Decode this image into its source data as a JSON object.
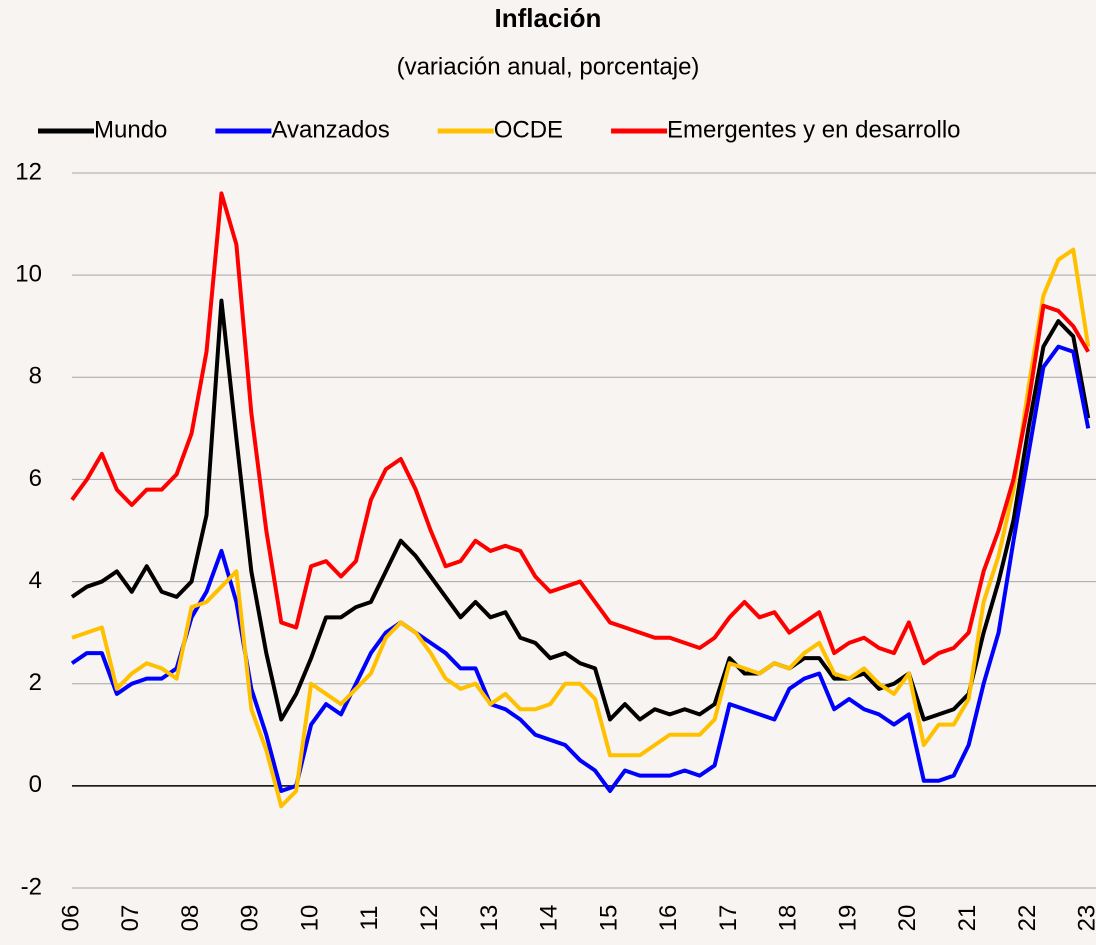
{
  "chart_data": {
    "type": "line",
    "title": "Inflación",
    "subtitle": "(variación anual, porcentaje)",
    "x": [
      2006,
      2006.25,
      2006.5,
      2006.75,
      2007,
      2007.25,
      2007.5,
      2007.75,
      2008,
      2008.25,
      2008.5,
      2008.75,
      2009,
      2009.25,
      2009.5,
      2009.75,
      2010,
      2010.25,
      2010.5,
      2010.75,
      2011,
      2011.25,
      2011.5,
      2011.75,
      2012,
      2012.25,
      2012.5,
      2012.75,
      2013,
      2013.25,
      2013.5,
      2013.75,
      2014,
      2014.25,
      2014.5,
      2014.75,
      2015,
      2015.25,
      2015.5,
      2015.75,
      2016,
      2016.25,
      2016.5,
      2016.75,
      2017,
      2017.25,
      2017.5,
      2017.75,
      2018,
      2018.25,
      2018.5,
      2018.75,
      2019,
      2019.25,
      2019.5,
      2019.75,
      2020,
      2020.25,
      2020.5,
      2020.75,
      2021,
      2021.25,
      2021.5,
      2021.75,
      2022,
      2022.25,
      2022.5,
      2022.75,
      2023
    ],
    "series": [
      {
        "name": "Mundo",
        "color": "#000000",
        "values": [
          3.7,
          3.9,
          4.0,
          4.2,
          3.8,
          4.3,
          3.8,
          3.7,
          4.0,
          5.3,
          9.5,
          6.8,
          4.2,
          2.6,
          1.3,
          1.8,
          2.5,
          3.3,
          3.3,
          3.5,
          3.6,
          4.2,
          4.8,
          4.5,
          4.1,
          3.7,
          3.3,
          3.6,
          3.3,
          3.4,
          2.9,
          2.8,
          2.5,
          2.6,
          2.4,
          2.3,
          1.3,
          1.6,
          1.3,
          1.5,
          1.4,
          1.5,
          1.4,
          1.6,
          2.5,
          2.2,
          2.2,
          2.4,
          2.3,
          2.5,
          2.5,
          2.1,
          2.1,
          2.2,
          1.9,
          2.0,
          2.2,
          1.3,
          1.4,
          1.5,
          1.8,
          3.0,
          4.0,
          5.2,
          7.0,
          8.6,
          9.1,
          8.8,
          7.2
        ]
      },
      {
        "name": "Avanzados",
        "color": "#0000ff",
        "values": [
          2.4,
          2.6,
          2.6,
          1.8,
          2.0,
          2.1,
          2.1,
          2.3,
          3.3,
          3.8,
          4.6,
          3.6,
          1.9,
          1.0,
          -0.1,
          0.0,
          1.2,
          1.6,
          1.4,
          2.0,
          2.6,
          3.0,
          3.2,
          3.0,
          2.8,
          2.6,
          2.3,
          2.3,
          1.6,
          1.5,
          1.3,
          1.0,
          0.9,
          0.8,
          0.5,
          0.3,
          -0.1,
          0.3,
          0.2,
          0.2,
          0.2,
          0.3,
          0.2,
          0.4,
          1.6,
          1.5,
          1.4,
          1.3,
          1.9,
          2.1,
          2.2,
          1.5,
          1.7,
          1.5,
          1.4,
          1.2,
          1.4,
          0.1,
          0.1,
          0.2,
          0.8,
          2.0,
          3.0,
          4.8,
          6.5,
          8.2,
          8.6,
          8.5,
          7.0
        ]
      },
      {
        "name": "OCDE",
        "color": "#ffc000",
        "values": [
          2.9,
          3.0,
          3.1,
          1.9,
          2.2,
          2.4,
          2.3,
          2.1,
          3.5,
          3.6,
          3.9,
          4.2,
          1.5,
          0.7,
          -0.4,
          -0.1,
          2.0,
          1.8,
          1.6,
          1.9,
          2.2,
          2.9,
          3.2,
          3.0,
          2.6,
          2.1,
          1.9,
          2.0,
          1.6,
          1.8,
          1.5,
          1.5,
          1.6,
          2.0,
          2.0,
          1.7,
          0.6,
          0.6,
          0.6,
          0.8,
          1.0,
          1.0,
          1.0,
          1.3,
          2.4,
          2.3,
          2.2,
          2.4,
          2.3,
          2.6,
          2.8,
          2.2,
          2.1,
          2.3,
          2.0,
          1.8,
          2.2,
          0.8,
          1.2,
          1.2,
          1.7,
          3.6,
          4.5,
          5.8,
          7.8,
          9.6,
          10.3,
          10.5,
          8.6
        ]
      },
      {
        "name": "Emergentes y en desarrollo",
        "color": "#ff0000",
        "values": [
          5.6,
          6.0,
          6.5,
          5.8,
          5.5,
          5.8,
          5.8,
          6.1,
          6.9,
          8.5,
          11.6,
          10.6,
          7.3,
          5.0,
          3.2,
          3.1,
          4.3,
          4.4,
          4.1,
          4.4,
          5.6,
          6.2,
          6.4,
          5.8,
          5.0,
          4.3,
          4.4,
          4.8,
          4.6,
          4.7,
          4.6,
          4.1,
          3.8,
          3.9,
          4.0,
          3.6,
          3.2,
          3.1,
          3.0,
          2.9,
          2.9,
          2.8,
          2.7,
          2.9,
          3.3,
          3.6,
          3.3,
          3.4,
          3.0,
          3.2,
          3.4,
          2.6,
          2.8,
          2.9,
          2.7,
          2.6,
          3.2,
          2.4,
          2.6,
          2.7,
          3.0,
          4.2,
          5.0,
          6.0,
          7.5,
          9.4,
          9.3,
          9.0,
          8.5
        ]
      }
    ],
    "xlim": [
      2006,
      2023.13
    ],
    "xticks": [
      {
        "value": 2006,
        "label": "06"
      },
      {
        "value": 2007,
        "label": "07"
      },
      {
        "value": 2008,
        "label": "08"
      },
      {
        "value": 2009,
        "label": "09"
      },
      {
        "value": 2010,
        "label": "10"
      },
      {
        "value": 2011,
        "label": "11"
      },
      {
        "value": 2012,
        "label": "12"
      },
      {
        "value": 2013,
        "label": "13"
      },
      {
        "value": 2014,
        "label": "14"
      },
      {
        "value": 2015,
        "label": "15"
      },
      {
        "value": 2016,
        "label": "16"
      },
      {
        "value": 2017,
        "label": "17"
      },
      {
        "value": 2018,
        "label": "18"
      },
      {
        "value": 2019,
        "label": "19"
      },
      {
        "value": 2020,
        "label": "20"
      },
      {
        "value": 2021,
        "label": "21"
      },
      {
        "value": 2022,
        "label": "22"
      },
      {
        "value": 2023,
        "label": "23"
      }
    ],
    "ylim": [
      -2,
      12
    ],
    "yticks": [
      -2,
      0,
      2,
      4,
      6,
      8,
      10,
      12
    ],
    "grid": true,
    "legend": "top"
  }
}
